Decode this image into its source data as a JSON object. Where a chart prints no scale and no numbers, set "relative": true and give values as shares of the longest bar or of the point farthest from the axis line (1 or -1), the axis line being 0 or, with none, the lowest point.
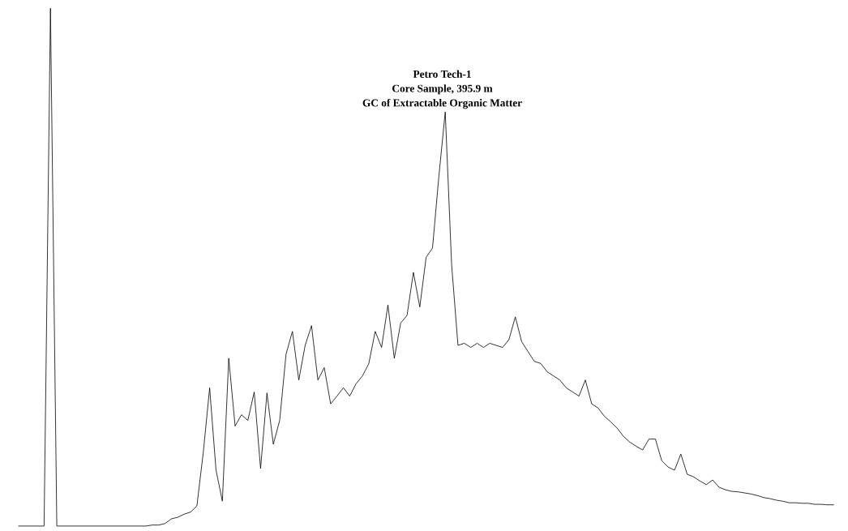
{
  "chart_data": {
    "type": "line",
    "title": "Petro Tech-1",
    "subtitle": "Core Sample, 395.9 m",
    "annotations": [
      "GC of Extractable Organic Matter"
    ],
    "relative": true,
    "color": "#000000",
    "marker": "none",
    "line_style": "solid",
    "categories": [
      null,
      null,
      null,
      null,
      null,
      null,
      null,
      null,
      null,
      null,
      null,
      null,
      null,
      null,
      null,
      null,
      null,
      null,
      null,
      null,
      null,
      null,
      null,
      null,
      null,
      null,
      null,
      null,
      null,
      null,
      null,
      null,
      null,
      null,
      null,
      null,
      null,
      null,
      null,
      null,
      null,
      null,
      null,
      null,
      null,
      null,
      null,
      null,
      null,
      null,
      null,
      null,
      null,
      null,
      null,
      null,
      null,
      null,
      null,
      null,
      null,
      null,
      null,
      null,
      null,
      null,
      null,
      null,
      null,
      null,
      null,
      null,
      null,
      null,
      null,
      null,
      null,
      null,
      null,
      null,
      null,
      null,
      null,
      null,
      null,
      null,
      null,
      null,
      null,
      null,
      null,
      null,
      null,
      null,
      null,
      null,
      null,
      null,
      null,
      null,
      null,
      null,
      null,
      null,
      null,
      null,
      null,
      null,
      null,
      null,
      null,
      null,
      null,
      null,
      null,
      null,
      null,
      null,
      null,
      null,
      null,
      null,
      null,
      null,
      null,
      null,
      null,
      null,
      null
    ],
    "values": [
      0,
      0,
      0,
      0,
      0,
      1,
      0,
      0,
      0,
      0,
      0,
      0,
      0,
      0,
      0,
      0,
      0,
      0,
      0,
      0,
      0,
      0.002,
      0.002,
      0.005,
      0.014,
      0.017,
      0.023,
      0.027,
      0.039,
      0.142,
      0.267,
      0.108,
      0.048,
      0.324,
      0.193,
      0.215,
      0.204,
      0.259,
      0.111,
      0.257,
      0.158,
      0.204,
      0.332,
      0.376,
      0.282,
      0.349,
      0.387,
      0.282,
      0.306,
      0.236,
      0.251,
      0.267,
      0.251,
      0.275,
      0.29,
      0.314,
      0.376,
      0.345,
      0.427,
      0.324,
      0.392,
      0.407,
      0.49,
      0.423,
      0.519,
      0.537,
      0.676,
      0.8,
      0.505,
      0.349,
      0.353,
      0.345,
      0.353,
      0.345,
      0.353,
      0.349,
      0.345,
      0.36,
      0.404,
      0.356,
      0.337,
      0.318,
      0.314,
      0.298,
      0.29,
      0.282,
      0.267,
      0.259,
      0.251,
      0.282,
      0.236,
      0.228,
      0.212,
      0.201,
      0.189,
      0.173,
      0.162,
      0.154,
      0.147,
      0.168,
      0.168,
      0.126,
      0.114,
      0.108,
      0.139,
      0.1,
      0.095,
      0.087,
      0.08,
      0.089,
      0.075,
      0.07,
      0.067,
      0.066,
      0.064,
      0.062,
      0.059,
      0.055,
      0.053,
      0.05,
      0.048,
      0.045,
      0.045,
      0.044,
      0.044,
      0.042,
      0.042,
      0.041,
      0.041
    ]
  }
}
